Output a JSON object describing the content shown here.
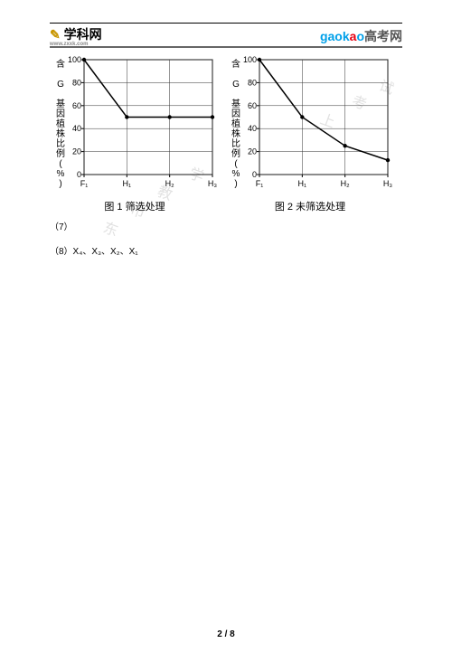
{
  "header": {
    "left_logo_text": "学科网",
    "left_logo_url": "www.zxxk.com",
    "right_logo_pre": "gaokao",
    "right_logo_suffix": "高考网"
  },
  "chart_common": {
    "y_label": "含 G 基因植株比例(%)",
    "y_ticks": [
      "0",
      "20",
      "40",
      "60",
      "80",
      "100"
    ],
    "x_ticks": [
      "F₁",
      "H₁",
      "H₂",
      "H₃"
    ],
    "axis_color": "#000000",
    "grid_color": "#333333",
    "line_color": "#000000",
    "background": "#ffffff",
    "y_min": 0,
    "y_max": 100,
    "tick_step": 20,
    "line_width": 1.5
  },
  "chart1": {
    "caption": "图 1  筛选处理",
    "x_vals": [
      0,
      1,
      2,
      3
    ],
    "y_vals": [
      100,
      50,
      50,
      50
    ]
  },
  "chart2": {
    "caption": "图 2  未筛选处理",
    "x_vals": [
      0,
      1,
      2,
      3
    ],
    "y_vals": [
      100,
      50,
      25,
      12.5
    ]
  },
  "questions": {
    "q7": "（7）",
    "q8": "（8）X₄、X₃、X₂、X₁"
  },
  "page_number": "2 / 8",
  "watermark": {
    "w1": "东",
    "w2": "市",
    "w3": "教",
    "w4": "学",
    "w5": "上",
    "w6": "考",
    "w7": "试"
  }
}
